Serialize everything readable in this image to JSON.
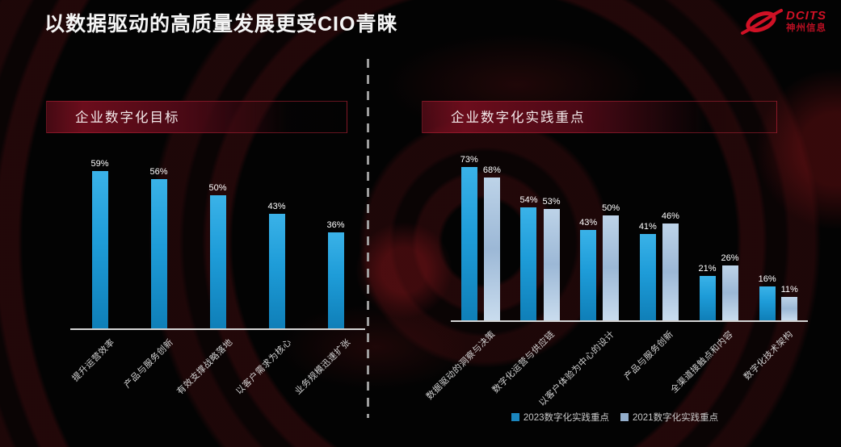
{
  "title": "以数据驱动的高质量发展更受CIO青睐",
  "logo": {
    "name": "DCITS",
    "subtitle": "神州信息",
    "color": "#cf1125"
  },
  "colors": {
    "background": "#030303",
    "accent_red": "#7a0e1f",
    "bar_2023_blue": "#1e9cd8",
    "bar_2021_lightblue": "#a9c3dc",
    "axis": "#d4d4d4",
    "label_text": "#d2d2d2"
  },
  "chart_data": [
    {
      "type": "bar",
      "title": "企业数字化目标",
      "categories": [
        "提升运营效率",
        "产品与服务创新",
        "有效支撑战略落地",
        "以客户需求为核心",
        "业务规模迅速扩张"
      ],
      "values": [
        59,
        56,
        50,
        43,
        36
      ],
      "unit": "%",
      "ylim": [
        0,
        65
      ],
      "grid": false,
      "bar_color": "#1e9cd8"
    },
    {
      "type": "bar",
      "title": "企业数字化实践重点",
      "categories": [
        "数据驱动的洞察与决策",
        "数字化运营与供应链",
        "以客户体验为中心的设计",
        "产品与服务创新",
        "全渠道接触点和内容",
        "数字化技术架构"
      ],
      "series": [
        {
          "name": "2023数字化实践重点",
          "values": [
            73,
            54,
            43,
            41,
            21,
            16
          ],
          "color": "#1b86be"
        },
        {
          "name": "2021数字化实践重点",
          "values": [
            68,
            53,
            50,
            46,
            26,
            11
          ],
          "color": "#93aecb"
        }
      ],
      "unit": "%",
      "ylim": [
        0,
        80
      ],
      "grid": false,
      "legend_position": "bottom"
    }
  ]
}
